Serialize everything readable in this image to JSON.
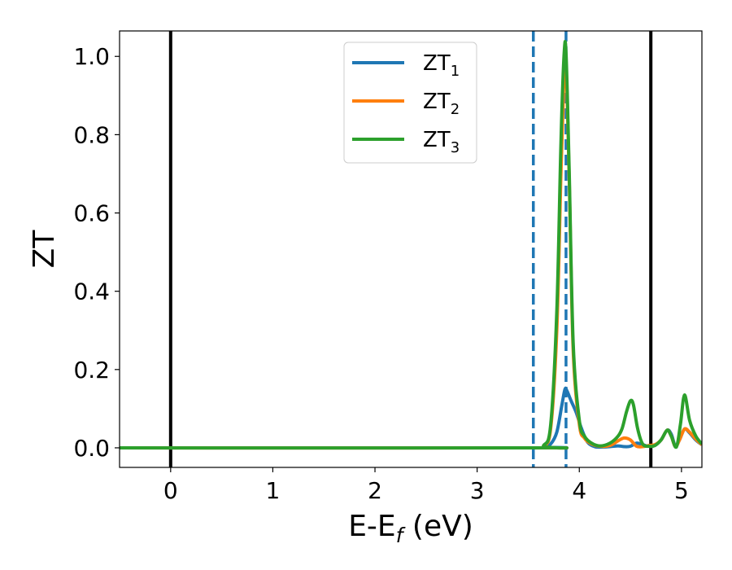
{
  "chart_data": {
    "type": "line",
    "xlabel": "E-E",
    "xlabel_sub": "f",
    "xlabel_unit": " (eV)",
    "ylabel": "ZT",
    "xlim": [
      -0.5,
      5.2
    ],
    "ylim": [
      -0.05,
      1.065
    ],
    "xticks": [
      0,
      1,
      2,
      3,
      4,
      5
    ],
    "xtick_labels": [
      "0",
      "1",
      "2",
      "3",
      "4",
      "5"
    ],
    "yticks": [
      0.0,
      0.2,
      0.4,
      0.6,
      0.8,
      1.0
    ],
    "ytick_labels": [
      "0.0",
      "0.2",
      "0.4",
      "0.6",
      "0.8",
      "1.0"
    ],
    "grid": false,
    "legend_position": "top-center",
    "vertical_lines": [
      {
        "x": 0.0,
        "style": "solid",
        "color": "#000000"
      },
      {
        "x": 4.7,
        "style": "solid",
        "color": "#000000"
      },
      {
        "x": 3.55,
        "style": "dashed",
        "color": "#1f77b4"
      },
      {
        "x": 3.87,
        "style": "dashed",
        "color": "#1f77b4"
      }
    ],
    "series": [
      {
        "name": "ZT",
        "name_sub": "1",
        "color": "#1f77b4",
        "x": [
          -0.5,
          3.55,
          3.65,
          3.72,
          3.78,
          3.83,
          3.86,
          3.88,
          3.92,
          3.97,
          4.02,
          4.08,
          4.15,
          4.22,
          4.3,
          4.38,
          4.44,
          4.5,
          4.56,
          4.62,
          4.68,
          4.74,
          4.8,
          4.86,
          4.9,
          4.94,
          4.98,
          5.03,
          5.08,
          5.14,
          5.2
        ],
        "values": [
          0.0,
          0.0,
          0.002,
          0.01,
          0.04,
          0.11,
          0.15,
          0.145,
          0.12,
          0.09,
          0.05,
          0.015,
          0.003,
          0.002,
          0.003,
          0.005,
          0.003,
          0.004,
          0.012,
          0.008,
          0.004,
          0.006,
          0.02,
          0.045,
          0.035,
          0.005,
          0.02,
          0.048,
          0.038,
          0.02,
          0.008
        ]
      },
      {
        "name": "ZT",
        "name_sub": "2",
        "color": "#ff7f0e",
        "x": [
          -0.5,
          3.55,
          3.65,
          3.72,
          3.78,
          3.82,
          3.85,
          3.87,
          3.9,
          3.94,
          4.0,
          4.05,
          4.12,
          4.2,
          4.3,
          4.38,
          4.44,
          4.5,
          4.56,
          4.62,
          4.68,
          4.74,
          4.8,
          4.86,
          4.9,
          4.94,
          4.98,
          5.03,
          5.08,
          5.14,
          5.2
        ],
        "values": [
          0.0,
          0.0,
          0.005,
          0.05,
          0.3,
          0.7,
          0.95,
          0.98,
          0.7,
          0.25,
          0.06,
          0.025,
          0.01,
          0.004,
          0.006,
          0.018,
          0.025,
          0.02,
          0.004,
          0.003,
          0.006,
          0.008,
          0.02,
          0.045,
          0.03,
          0.003,
          0.02,
          0.048,
          0.04,
          0.022,
          0.008
        ]
      },
      {
        "name": "ZT",
        "name_sub": "3",
        "color": "#2ca02c",
        "x": [
          -0.5,
          3.55,
          3.65,
          3.72,
          3.78,
          3.82,
          3.85,
          3.87,
          3.9,
          3.94,
          4.0,
          4.05,
          4.12,
          4.2,
          4.3,
          4.38,
          4.42,
          4.46,
          4.5,
          4.53,
          4.57,
          4.62,
          4.68,
          4.74,
          4.8,
          4.86,
          4.9,
          4.95,
          4.99,
          5.03,
          5.08,
          5.14,
          5.2
        ],
        "values": [
          0.0,
          0.0,
          0.006,
          0.06,
          0.35,
          0.78,
          1.0,
          1.01,
          0.72,
          0.27,
          0.07,
          0.03,
          0.012,
          0.005,
          0.012,
          0.03,
          0.05,
          0.09,
          0.12,
          0.11,
          0.05,
          0.01,
          0.004,
          0.006,
          0.02,
          0.045,
          0.03,
          0.002,
          0.06,
          0.135,
          0.07,
          0.03,
          0.01
        ]
      }
    ]
  }
}
